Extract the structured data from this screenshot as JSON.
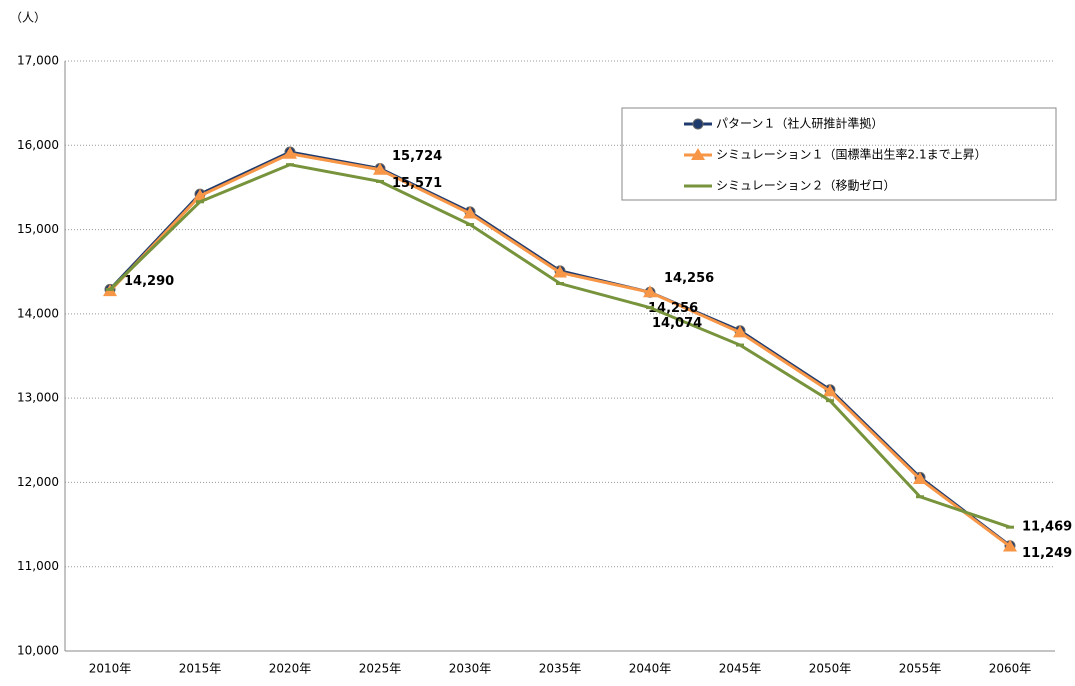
{
  "chart_data": {
    "type": "line",
    "y_label": "（人）",
    "categories": [
      "2010年",
      "2015年",
      "2020年",
      "2025年",
      "2030年",
      "2035年",
      "2040年",
      "2045年",
      "2050年",
      "2055年",
      "2060年"
    ],
    "ylim": [
      10000,
      17000
    ],
    "yticks": [
      {
        "value": 10000,
        "label": "10,000"
      },
      {
        "value": 11000,
        "label": "11,000"
      },
      {
        "value": 12000,
        "label": "12,000"
      },
      {
        "value": 13000,
        "label": "13,000"
      },
      {
        "value": 14000,
        "label": "14,000"
      },
      {
        "value": 15000,
        "label": "15,000"
      },
      {
        "value": 16000,
        "label": "16,000"
      },
      {
        "value": 17000,
        "label": "17,000"
      }
    ],
    "grid": true,
    "legend": "upper right",
    "series": [
      {
        "name": "パターン１（社人研推計準拠）",
        "color": "#1f3b6e",
        "marker": "circle",
        "values": [
          14290,
          15420,
          15920,
          15724,
          15210,
          14510,
          14256,
          13800,
          13100,
          12060,
          11249
        ],
        "value_labels": [
          "14,290",
          null,
          null,
          "15,724",
          null,
          null,
          "14,256",
          null,
          null,
          null,
          "11,249"
        ]
      },
      {
        "name": "シミュレーション１（国標準出生率2.1まで上昇）",
        "color": "#f79646",
        "marker": "triangle",
        "values": [
          14270,
          15400,
          15900,
          15710,
          15190,
          14490,
          14256,
          13780,
          13080,
          12040,
          11240
        ],
        "value_labels": [
          null,
          null,
          null,
          null,
          null,
          null,
          "14,256",
          null,
          null,
          null,
          null
        ]
      },
      {
        "name": "シミュレーション２（移動ゼロ）",
        "color": "#77933c",
        "marker": "dash",
        "values": [
          14290,
          15330,
          15770,
          15571,
          15060,
          14360,
          14074,
          13630,
          12970,
          11830,
          11469
        ],
        "value_labels": [
          null,
          null,
          null,
          "15,571",
          null,
          null,
          "14,074",
          null,
          null,
          null,
          "11,469"
        ]
      }
    ]
  }
}
